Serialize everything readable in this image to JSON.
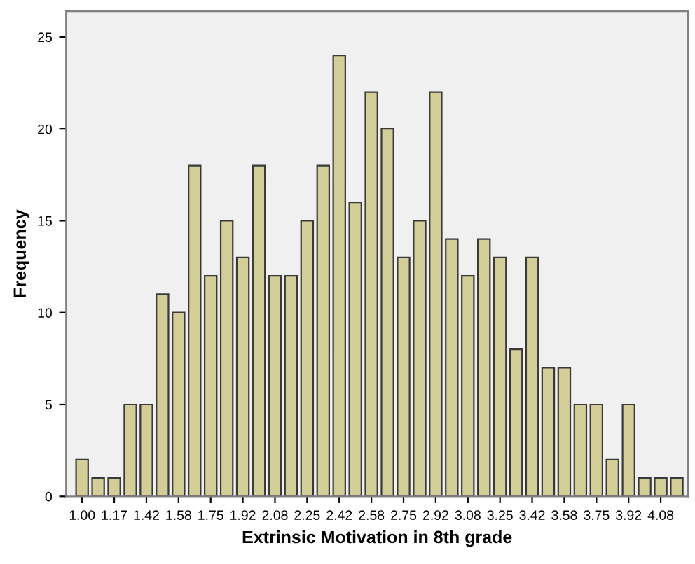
{
  "chart_data": {
    "type": "bar",
    "xlabel": "Extrinsic Motivation in 8th grade",
    "ylabel": "Frequency",
    "categories": [
      "1.00",
      null,
      "1.17",
      null,
      "1.42",
      null,
      "1.58",
      null,
      "1.75",
      null,
      "1.92",
      null,
      "2.08",
      null,
      "2.25",
      null,
      "2.42",
      null,
      "2.58",
      null,
      "2.75",
      null,
      "2.92",
      null,
      "3.08",
      null,
      "3.25",
      null,
      "3.42",
      null,
      "3.58",
      null,
      "3.75",
      null,
      "3.92",
      null,
      "4.08",
      null
    ],
    "values": [
      2,
      1,
      1,
      5,
      5,
      11,
      10,
      18,
      12,
      15,
      13,
      18,
      12,
      12,
      15,
      18,
      24,
      16,
      22,
      20,
      13,
      15,
      22,
      14,
      12,
      14,
      13,
      8,
      13,
      7,
      7,
      5,
      5,
      2,
      5,
      1,
      1,
      1
    ],
    "color": "#d3ce97",
    "ylim": [
      0,
      26.4
    ],
    "yticks": [
      0,
      5,
      10,
      15,
      20,
      25
    ],
    "grid": false,
    "legend": false
  }
}
